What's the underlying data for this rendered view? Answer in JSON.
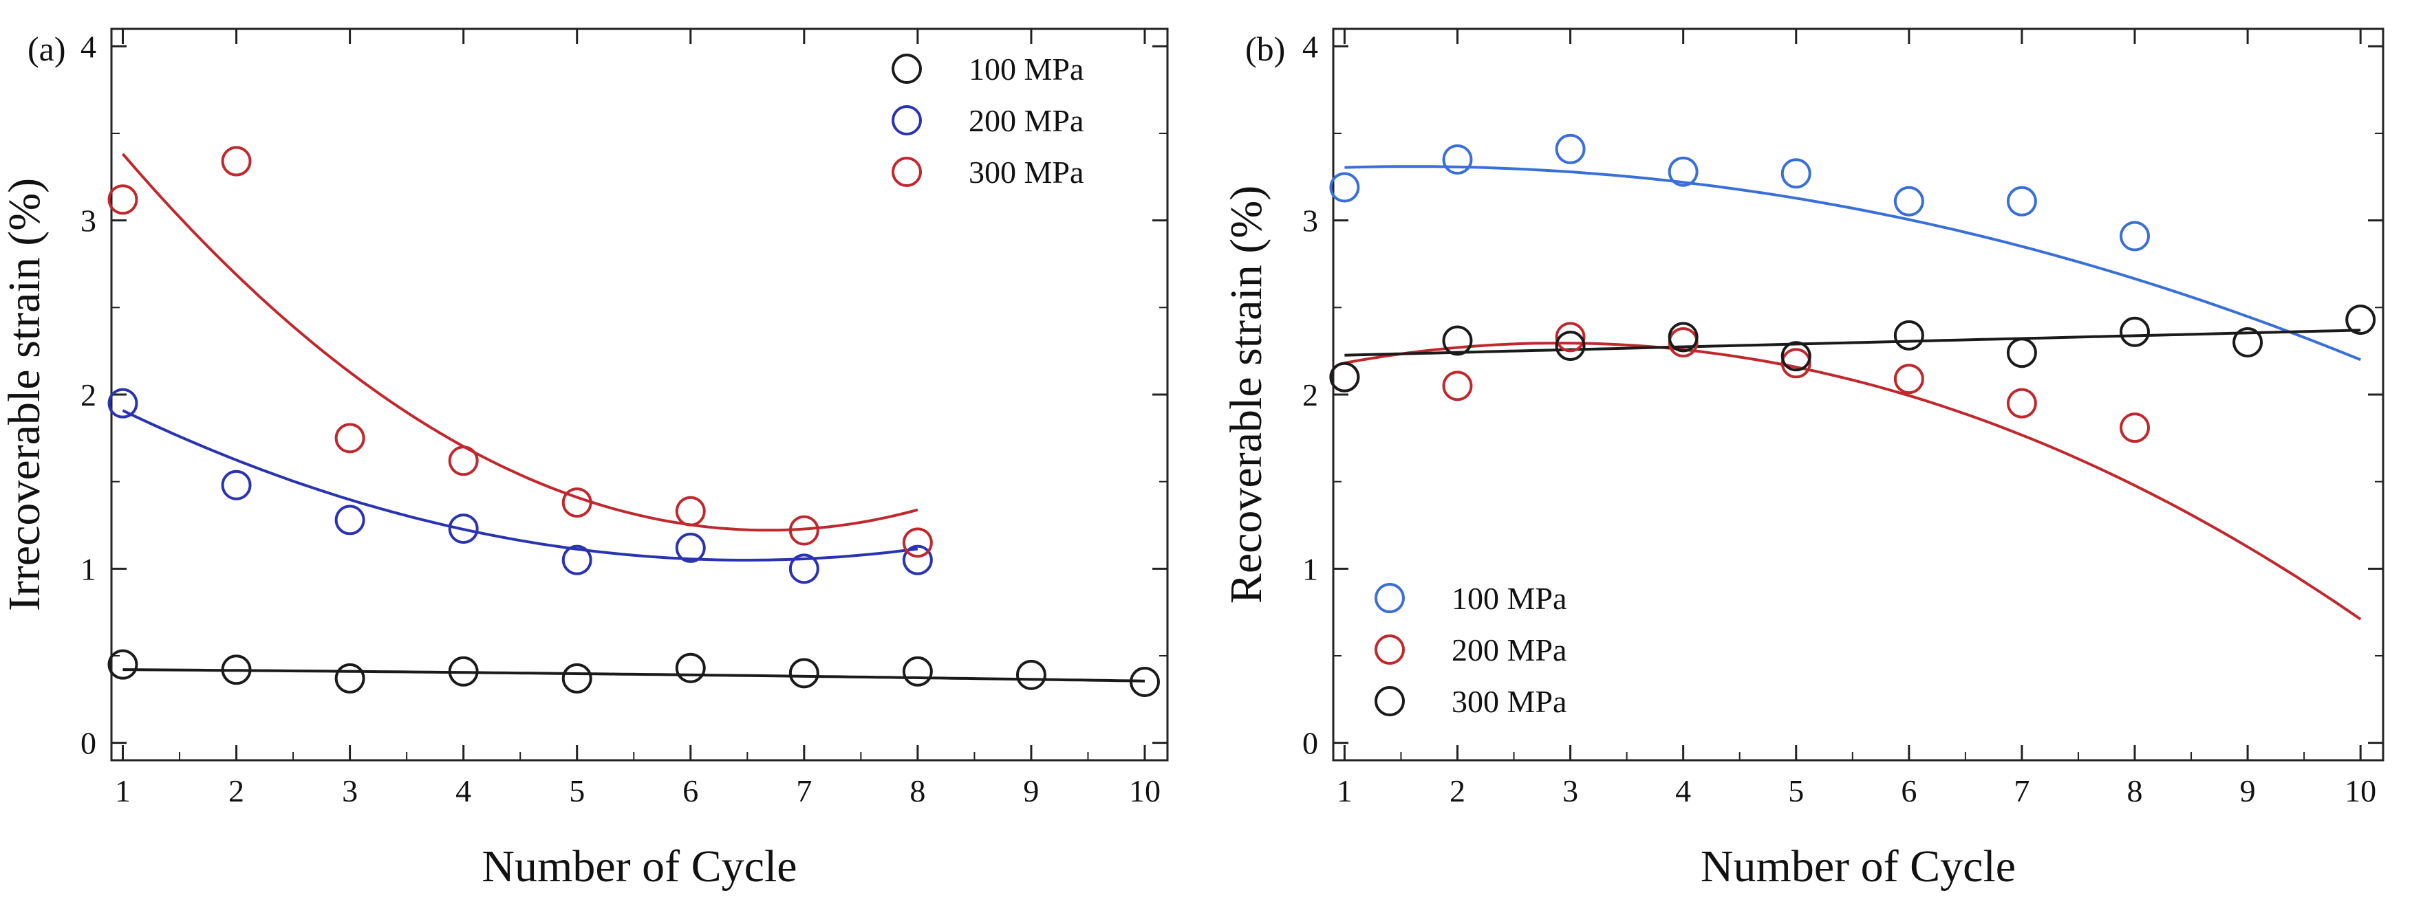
{
  "chart_data": [
    {
      "panel": "(a)",
      "type": "scatter",
      "xlabel": "Number of Cycle",
      "ylabel": "Irrecoverable strain (%)",
      "xlim": [
        0.9,
        10.2
      ],
      "ylim": [
        -0.1,
        4.1
      ],
      "xticks": [
        1,
        2,
        3,
        4,
        5,
        6,
        7,
        8,
        9,
        10
      ],
      "yticks": [
        0,
        1,
        2,
        3,
        4
      ],
      "legend_position": "top-right",
      "series": [
        {
          "name": "100 MPa",
          "color": "#1a1a1a",
          "x": [
            1,
            2,
            3,
            4,
            5,
            6,
            7,
            8,
            9,
            10
          ],
          "y": [
            0.45,
            0.42,
            0.37,
            0.41,
            0.37,
            0.43,
            0.4,
            0.41,
            0.39,
            0.35
          ],
          "fit_coeffs": [
            0.425,
            -0.004,
            -0.0003
          ],
          "fit_range": [
            1,
            10
          ]
        },
        {
          "name": "200 MPa",
          "color": "#2a33b0",
          "x": [
            1,
            2,
            3,
            4,
            5,
            6,
            7,
            8
          ],
          "y": [
            1.95,
            1.48,
            1.28,
            1.23,
            1.05,
            1.12,
            1.0,
            1.05
          ],
          "fit_coeffs": [
            2.25,
            -0.37,
            0.0285
          ],
          "fit_range": [
            1,
            8
          ]
        },
        {
          "name": "300 MPa",
          "color": "#c0282d",
          "x": [
            1,
            2,
            3,
            4,
            5,
            6,
            7,
            8
          ],
          "y": [
            3.12,
            3.34,
            1.75,
            1.62,
            1.38,
            1.33,
            1.22,
            1.15
          ],
          "fit_coeffs": [
            4.21,
            -0.895,
            0.067
          ],
          "fit_range": [
            1,
            8
          ]
        }
      ]
    },
    {
      "panel": "(b)",
      "type": "scatter",
      "xlabel": "Number of Cycle",
      "ylabel": "Recoverable strain (%)",
      "xlim": [
        0.9,
        10.2
      ],
      "ylim": [
        -0.1,
        4.1
      ],
      "xticks": [
        1,
        2,
        3,
        4,
        5,
        6,
        7,
        8,
        9,
        10
      ],
      "yticks": [
        0,
        1,
        2,
        3,
        4
      ],
      "legend_position": "bottom-left",
      "series": [
        {
          "name": "100 MPa",
          "color": "#3a6fd8",
          "x": [
            1,
            2,
            3,
            4,
            5,
            6,
            7,
            8
          ],
          "y": [
            3.19,
            3.35,
            3.41,
            3.28,
            3.27,
            3.11,
            3.11,
            2.91
          ],
          "fit_coeffs": [
            3.27,
            0.05,
            -0.0157
          ],
          "fit_range": [
            1,
            10
          ]
        },
        {
          "name": "200 MPa",
          "color": "#c0282d",
          "x": [
            1,
            2,
            3,
            4,
            5,
            6,
            7,
            8
          ],
          "y": [
            2.1,
            2.05,
            2.33,
            2.3,
            2.18,
            2.09,
            1.95,
            1.81
          ],
          "fit_coeffs": [
            2.03,
            0.183,
            -0.0315
          ],
          "fit_range": [
            1,
            10
          ]
        },
        {
          "name": "300 MPa",
          "color": "#1a1a1a",
          "x": [
            1,
            2,
            3,
            4,
            5,
            6,
            7,
            8,
            9,
            10
          ],
          "y": [
            2.1,
            2.31,
            2.28,
            2.33,
            2.22,
            2.34,
            2.24,
            2.36,
            2.3,
            2.43
          ],
          "fit_coeffs": [
            2.21,
            0.016,
            0.0
          ],
          "fit_range": [
            1,
            10
          ]
        }
      ]
    }
  ]
}
